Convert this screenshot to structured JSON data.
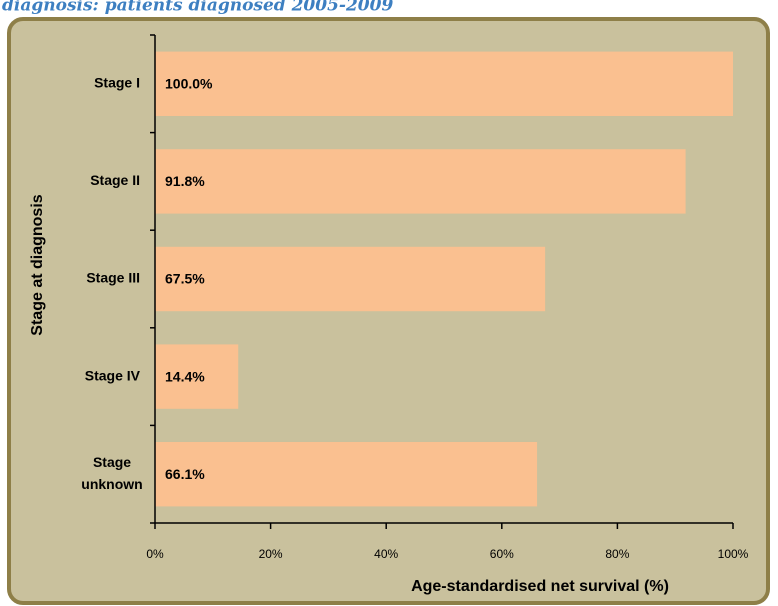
{
  "chart_data": {
    "type": "bar",
    "orientation": "horizontal",
    "title": "diagnosis: patients diagnosed 2005-2009",
    "xlabel": "Age-standardised net survival (%)",
    "ylabel": "Stage at diagnosis",
    "categories": [
      "Stage I",
      "Stage II",
      "Stage III",
      "Stage IV",
      "Stage unknown"
    ],
    "values": [
      100.0,
      91.8,
      67.5,
      14.4,
      66.1
    ],
    "value_labels": [
      "100.0%",
      "91.8%",
      "67.5%",
      "14.4%",
      "66.1%"
    ],
    "color": "#fac090",
    "xlim": [
      0,
      100
    ],
    "xticks": [
      {
        "value": 0,
        "label": "0%"
      },
      {
        "value": 20,
        "label": "20%"
      },
      {
        "value": 40,
        "label": "40%"
      },
      {
        "value": 60,
        "label": "60%"
      },
      {
        "value": 80,
        "label": "80%"
      },
      {
        "value": 100,
        "label": "100%"
      }
    ],
    "grid": false
  }
}
